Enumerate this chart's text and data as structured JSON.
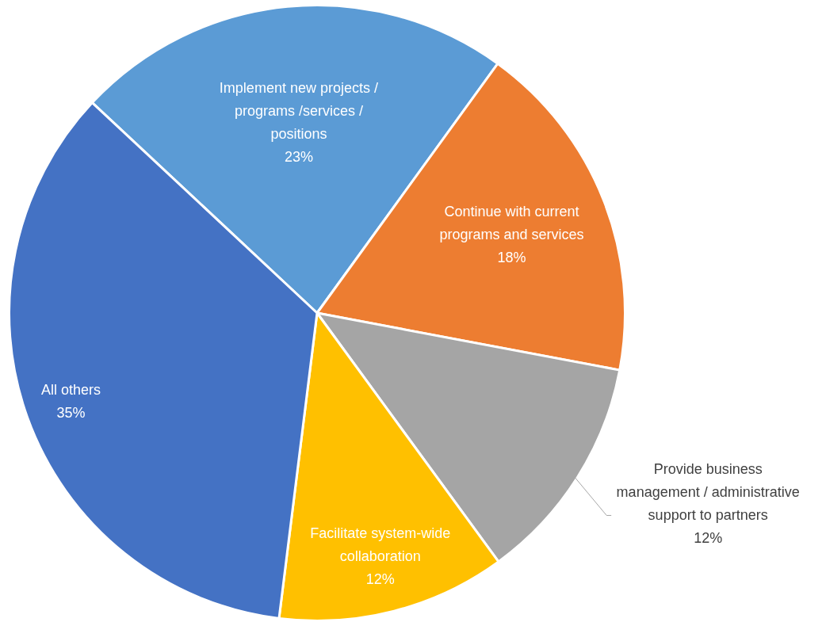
{
  "chart_data": {
    "type": "pie",
    "categories": [
      "Implement new projects / programs /services / positions",
      "Continue with current programs and services",
      "Provide business management / administrative support to partners",
      "Facilitate system-wide collaboration",
      "All others"
    ],
    "values": [
      23,
      18,
      12,
      12,
      35
    ],
    "colors": [
      "#5b9bd5",
      "#ed7d31",
      "#a5a5a5",
      "#ffc000",
      "#4472c4"
    ],
    "value_labels": [
      "23%",
      "18%",
      "12%",
      "12%",
      "35%"
    ],
    "legend": false
  }
}
